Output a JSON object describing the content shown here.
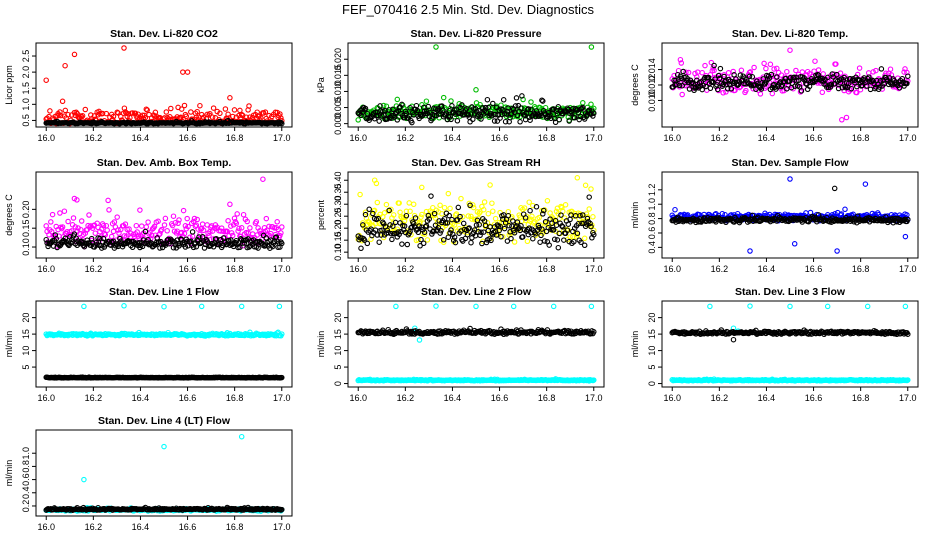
{
  "title": "FEF_070416  2.5 Min. Std. Dev. Diagnostics",
  "chart_data": [
    {
      "type": "scatter",
      "title": "Stan. Dev. Li-820 CO2",
      "ylabel": "Licor ppm",
      "xlim": [
        16.0,
        17.0
      ],
      "ylim": [
        0.4,
        2.8
      ],
      "yticks": [
        "0.5",
        "1.0",
        "1.5",
        "2.0",
        "2.5"
      ],
      "xticks": [
        "16.0",
        "16.2",
        "16.4",
        "16.6",
        "16.8",
        "17.0"
      ],
      "series": [
        {
          "color": "#ff0000",
          "base": 0.55,
          "spread": 0.35,
          "outliers": [
            [
              16.0,
              1.75
            ],
            [
              16.08,
              2.2
            ],
            [
              16.12,
              2.55
            ],
            [
              16.33,
              2.75
            ],
            [
              16.58,
              2.0
            ],
            [
              16.6,
              2.0
            ]
          ]
        },
        {
          "color": "#000000",
          "base": 0.4,
          "spread": 0.05,
          "outliers": []
        }
      ]
    },
    {
      "type": "scatter",
      "title": "Stan. Dev. Li-820 Pressure",
      "ylabel": "kPa",
      "xlim": [
        16.0,
        17.0
      ],
      "ylim": [
        0.0,
        0.024
      ],
      "yticks": [
        "0.000",
        "0.005",
        "0.010",
        "0.015",
        "0.020"
      ],
      "xticks": [
        "16.0",
        "16.2",
        "16.4",
        "16.6",
        "16.8",
        "17.0"
      ],
      "series": [
        {
          "color": "#00bb00",
          "base": 0.0035,
          "spread": 0.0025,
          "outliers": [
            [
              16.33,
              0.0238
            ],
            [
              16.5,
              0.0105
            ],
            [
              16.7,
              0.0075
            ],
            [
              16.99,
              0.0238
            ]
          ]
        },
        {
          "color": "#000000",
          "base": 0.003,
          "spread": 0.003,
          "outliers": []
        }
      ]
    },
    {
      "type": "scatter",
      "title": "Stan. Dev. Li-820 Temp.",
      "ylabel": "degrees C",
      "xlim": [
        16.0,
        17.0
      ],
      "ylim": [
        0.007,
        0.017
      ],
      "yticks": [
        "0.010",
        "0.012",
        "0.014"
      ],
      "xticks": [
        "16.0",
        "16.2",
        "16.4",
        "16.6",
        "16.8",
        "17.0"
      ],
      "series": [
        {
          "color": "#ff00ff",
          "base": 0.0125,
          "spread": 0.0018,
          "outliers": [
            [
              16.5,
              0.0165
            ],
            [
              16.72,
              0.0075
            ],
            [
              16.74,
              0.0078
            ]
          ]
        },
        {
          "color": "#000000",
          "base": 0.0123,
          "spread": 0.0012,
          "outliers": []
        }
      ]
    },
    {
      "type": "scatter",
      "title": "Stan. Dev. Amb. Box Temp.",
      "ylabel": "degrees C",
      "xlim": [
        16.0,
        17.0
      ],
      "ylim": [
        0.08,
        0.29
      ],
      "yticks": [
        "0.10",
        "0.15",
        "0.20"
      ],
      "xticks": [
        "16.0",
        "16.2",
        "16.4",
        "16.6",
        "16.8",
        "17.0"
      ],
      "series": [
        {
          "color": "#ff00ff",
          "base": 0.14,
          "spread": 0.04,
          "outliers": [
            [
              16.13,
              0.225
            ],
            [
              16.92,
              0.28
            ]
          ]
        },
        {
          "color": "#000000",
          "base": 0.11,
          "spread": 0.015,
          "outliers": []
        }
      ]
    },
    {
      "type": "scatter",
      "title": "Stan. Dev. Gas Stream RH",
      "ylabel": "percent",
      "xlim": [
        16.0,
        17.0
      ],
      "ylim": [
        0.09,
        0.42
      ],
      "yticks": [
        "0.10",
        "0.15",
        "0.20",
        "0.25",
        "0.30",
        "0.35",
        "0.40"
      ],
      "xticks": [
        "16.0",
        "16.2",
        "16.4",
        "16.6",
        "16.8",
        "17.0"
      ],
      "series": [
        {
          "color": "#ffff00",
          "base": 0.22,
          "spread": 0.1,
          "outliers": [
            [
              16.07,
              0.4
            ],
            [
              16.27,
              0.37
            ],
            [
              16.56,
              0.38
            ],
            [
              16.93,
              0.41
            ]
          ]
        },
        {
          "color": "#000000",
          "base": 0.19,
          "spread": 0.08,
          "outliers": []
        }
      ]
    },
    {
      "type": "scatter",
      "title": "Stan. Dev. Sample Flow",
      "ylabel": "ml/min",
      "xlim": [
        16.0,
        17.0
      ],
      "ylim": [
        0.3,
        1.4
      ],
      "yticks": [
        "0.4",
        "0.6",
        "0.8",
        "1.0",
        "1.2"
      ],
      "xticks": [
        "16.0",
        "16.2",
        "16.4",
        "16.6",
        "16.8",
        "17.0"
      ],
      "series": [
        {
          "color": "#0000ff",
          "base": 0.82,
          "spread": 0.06,
          "outliers": [
            [
              16.5,
              1.35
            ],
            [
              16.52,
              0.45
            ],
            [
              16.33,
              0.35
            ],
            [
              16.82,
              1.28
            ],
            [
              16.7,
              0.35
            ],
            [
              16.99,
              0.55
            ]
          ]
        },
        {
          "color": "#000000",
          "base": 0.78,
          "spread": 0.04,
          "outliers": [
            [
              16.69,
              1.22
            ]
          ]
        }
      ]
    },
    {
      "type": "scatter",
      "title": "Stan. Dev. Line 1 Flow",
      "ylabel": "ml/min",
      "xlim": [
        16.0,
        17.0
      ],
      "ylim": [
        0,
        24
      ],
      "yticks": [
        "5",
        "10",
        "15",
        "20"
      ],
      "xticks": [
        "16.0",
        "16.2",
        "16.4",
        "16.6",
        "16.8",
        "17.0"
      ],
      "series": [
        {
          "color": "#00ffff",
          "base": 14.8,
          "spread": 0.4,
          "outliers": [
            [
              16.16,
              23.4
            ],
            [
              16.33,
              23.6
            ],
            [
              16.5,
              23.3
            ],
            [
              16.66,
              23.4
            ],
            [
              16.83,
              23.4
            ],
            [
              16.99,
              23.4
            ]
          ]
        },
        {
          "color": "#000000",
          "base": 1.8,
          "spread": 0.1,
          "outliers": []
        }
      ]
    },
    {
      "type": "scatter",
      "title": "Stan. Dev. Line 2 Flow",
      "ylabel": "ml/min",
      "xlim": [
        16.0,
        17.0
      ],
      "ylim": [
        0,
        24
      ],
      "yticks": [
        "0",
        "5",
        "10",
        "15",
        "20"
      ],
      "xticks": [
        "16.0",
        "16.2",
        "16.4",
        "16.6",
        "16.8",
        "17.0"
      ],
      "series": [
        {
          "color": "#00ffff",
          "base": 1.0,
          "spread": 0.2,
          "outliers": [
            [
              16.16,
              23.4
            ],
            [
              16.33,
              23.5
            ],
            [
              16.5,
              23.4
            ],
            [
              16.66,
              23.4
            ],
            [
              16.83,
              23.4
            ],
            [
              16.99,
              23.4
            ],
            [
              16.26,
              13.2
            ],
            [
              16.24,
              16.8
            ]
          ]
        },
        {
          "color": "#000000",
          "base": 15.5,
          "spread": 0.6,
          "outliers": []
        }
      ]
    },
    {
      "type": "scatter",
      "title": "Stan. Dev. Line 3 Flow",
      "ylabel": "ml/min",
      "xlim": [
        16.0,
        17.0
      ],
      "ylim": [
        0,
        24
      ],
      "yticks": [
        "0",
        "5",
        "10",
        "15",
        "20"
      ],
      "xticks": [
        "16.0",
        "16.2",
        "16.4",
        "16.6",
        "16.8",
        "17.0"
      ],
      "series": [
        {
          "color": "#00ffff",
          "base": 1.0,
          "spread": 0.2,
          "outliers": [
            [
              16.16,
              23.4
            ],
            [
              16.33,
              23.5
            ],
            [
              16.5,
              23.4
            ],
            [
              16.66,
              23.4
            ],
            [
              16.83,
              23.4
            ],
            [
              16.99,
              23.4
            ],
            [
              16.26,
              16.8
            ],
            [
              16.28,
              15.9
            ]
          ]
        },
        {
          "color": "#000000",
          "base": 15.4,
          "spread": 0.5,
          "outliers": [
            [
              16.26,
              13.3
            ]
          ]
        }
      ]
    },
    {
      "type": "scatter",
      "title": "Stan. Dev. Line 4 (LT) Flow",
      "ylabel": "ml/min",
      "xlim": [
        16.0,
        17.0
      ],
      "ylim": [
        0.1,
        1.3
      ],
      "yticks": [
        "0.2",
        "0.4",
        "0.6",
        "0.8",
        "1.0"
      ],
      "xticks": [
        "16.0",
        "16.2",
        "16.4",
        "16.6",
        "16.8",
        "17.0"
      ],
      "series": [
        {
          "color": "#00ffff",
          "base": 0.14,
          "spread": 0.02,
          "outliers": [
            [
              16.16,
              0.6
            ],
            [
              16.5,
              1.1
            ],
            [
              16.83,
              1.25
            ]
          ]
        },
        {
          "color": "#000000",
          "base": 0.15,
          "spread": 0.015,
          "outliers": []
        }
      ]
    }
  ]
}
